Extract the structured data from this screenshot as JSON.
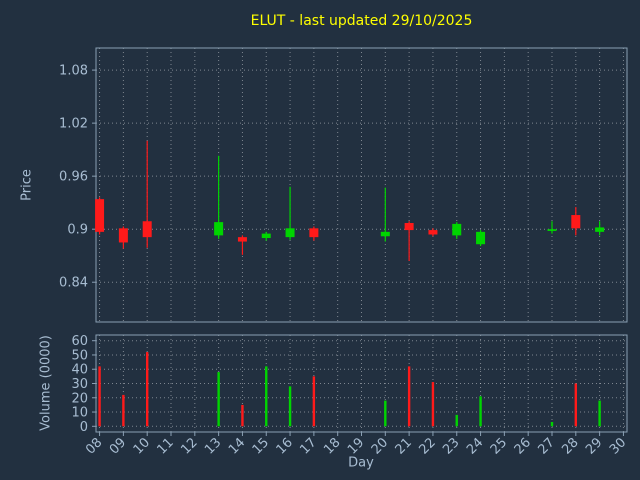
{
  "colors": {
    "background": "#223040",
    "text": "#a8bdd2",
    "title": "#ffff00",
    "spine": "#8aa0b4",
    "grid": "#ffffff",
    "up": "#00d500",
    "down": "#ff1a1a"
  },
  "chart_data": [
    {
      "type": "candlestick",
      "title": "ELUT - last updated 29/10/2025",
      "ylabel": "Price",
      "xlabel": "Day",
      "grid": true,
      "xlim": [
        7.85,
        30.15
      ],
      "ylim": [
        0.795,
        1.105
      ],
      "y_ticks": [
        {
          "v": 1.08,
          "label": "1.08"
        },
        {
          "v": 1.02,
          "label": "1.02"
        },
        {
          "v": 0.96,
          "label": "0.96"
        },
        {
          "v": 0.9,
          "label": "0.9"
        },
        {
          "v": 0.84,
          "label": "0.84"
        }
      ],
      "x_ticks": [
        {
          "v": 8,
          "label": "08"
        },
        {
          "v": 9,
          "label": "09"
        },
        {
          "v": 10,
          "label": "10"
        },
        {
          "v": 11,
          "label": "11"
        },
        {
          "v": 12,
          "label": "12"
        },
        {
          "v": 13,
          "label": "13"
        },
        {
          "v": 14,
          "label": "14"
        },
        {
          "v": 15,
          "label": "15"
        },
        {
          "v": 16,
          "label": "16"
        },
        {
          "v": 17,
          "label": "17"
        },
        {
          "v": 18,
          "label": "18"
        },
        {
          "v": 19,
          "label": "19"
        },
        {
          "v": 20,
          "label": "20"
        },
        {
          "v": 21,
          "label": "21"
        },
        {
          "v": 22,
          "label": "22"
        },
        {
          "v": 23,
          "label": "23"
        },
        {
          "v": 24,
          "label": "24"
        },
        {
          "v": 25,
          "label": "25"
        },
        {
          "v": 26,
          "label": "26"
        },
        {
          "v": 27,
          "label": "27"
        },
        {
          "v": 28,
          "label": "28"
        },
        {
          "v": 29,
          "label": "29"
        },
        {
          "v": 30,
          "label": "30"
        }
      ],
      "candles": [
        {
          "day": 8,
          "open": 0.934,
          "high": 0.936,
          "low": 0.894,
          "close": 0.897
        },
        {
          "day": 9,
          "open": 0.901,
          "high": 0.903,
          "low": 0.878,
          "close": 0.885
        },
        {
          "day": 10,
          "open": 0.909,
          "high": 1.0,
          "low": 0.879,
          "close": 0.891
        },
        {
          "day": 13,
          "open": 0.893,
          "high": 0.983,
          "low": 0.889,
          "close": 0.908
        },
        {
          "day": 14,
          "open": 0.891,
          "high": 0.893,
          "low": 0.871,
          "close": 0.886
        },
        {
          "day": 15,
          "open": 0.89,
          "high": 0.897,
          "low": 0.887,
          "close": 0.895
        },
        {
          "day": 16,
          "open": 0.891,
          "high": 0.948,
          "low": 0.888,
          "close": 0.901
        },
        {
          "day": 17,
          "open": 0.901,
          "high": 0.903,
          "low": 0.887,
          "close": 0.891
        },
        {
          "day": 20,
          "open": 0.892,
          "high": 0.947,
          "low": 0.886,
          "close": 0.897
        },
        {
          "day": 21,
          "open": 0.907,
          "high": 0.909,
          "low": 0.864,
          "close": 0.899
        },
        {
          "day": 22,
          "open": 0.899,
          "high": 0.901,
          "low": 0.892,
          "close": 0.894
        },
        {
          "day": 23,
          "open": 0.893,
          "high": 0.908,
          "low": 0.889,
          "close": 0.906
        },
        {
          "day": 24,
          "open": 0.883,
          "high": 0.899,
          "low": 0.881,
          "close": 0.897
        },
        {
          "day": 27,
          "open": 0.898,
          "high": 0.909,
          "low": 0.895,
          "close": 0.9
        },
        {
          "day": 28,
          "open": 0.916,
          "high": 0.925,
          "low": 0.893,
          "close": 0.901
        },
        {
          "day": 29,
          "open": 0.897,
          "high": 0.909,
          "low": 0.893,
          "close": 0.902
        }
      ]
    },
    {
      "type": "bar",
      "ylabel": "Volume (0000)",
      "grid": true,
      "ylim": [
        -4,
        64
      ],
      "y_ticks": [
        {
          "v": 60,
          "label": "60"
        },
        {
          "v": 50,
          "label": "50"
        },
        {
          "v": 40,
          "label": "40"
        },
        {
          "v": 30,
          "label": "30"
        },
        {
          "v": 20,
          "label": "20"
        },
        {
          "v": 10,
          "label": "10"
        },
        {
          "v": 0,
          "label": "0"
        }
      ],
      "bars": [
        {
          "day": 8,
          "value": 42,
          "dir": "down"
        },
        {
          "day": 9,
          "value": 22,
          "dir": "down"
        },
        {
          "day": 10,
          "value": 52,
          "dir": "down"
        },
        {
          "day": 13,
          "value": 38,
          "dir": "up"
        },
        {
          "day": 14,
          "value": 15,
          "dir": "down"
        },
        {
          "day": 15,
          "value": 42,
          "dir": "up"
        },
        {
          "day": 16,
          "value": 28,
          "dir": "up"
        },
        {
          "day": 17,
          "value": 35,
          "dir": "down"
        },
        {
          "day": 20,
          "value": 18,
          "dir": "up"
        },
        {
          "day": 21,
          "value": 42,
          "dir": "down"
        },
        {
          "day": 22,
          "value": 31,
          "dir": "down"
        },
        {
          "day": 23,
          "value": 8,
          "dir": "up"
        },
        {
          "day": 24,
          "value": 21,
          "dir": "up"
        },
        {
          "day": 27,
          "value": 3,
          "dir": "up"
        },
        {
          "day": 28,
          "value": 30,
          "dir": "down"
        },
        {
          "day": 29,
          "value": 18,
          "dir": "up"
        }
      ]
    }
  ]
}
